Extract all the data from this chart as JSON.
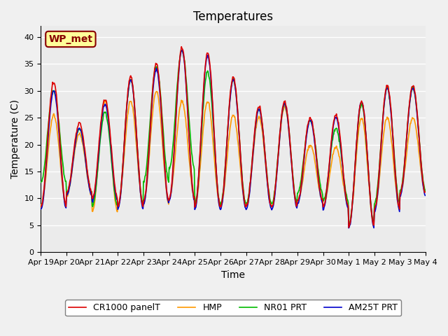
{
  "title": "Temperatures",
  "xlabel": "Time",
  "ylabel": "Temperature (C)",
  "ylim": [
    0,
    42
  ],
  "yticks": [
    0,
    5,
    10,
    15,
    20,
    25,
    30,
    35,
    40
  ],
  "xtick_labels": [
    "Apr 19",
    "Apr 20",
    "Apr 21",
    "Apr 22",
    "Apr 23",
    "Apr 24",
    "Apr 25",
    "Apr 26",
    "Apr 27",
    "Apr 28",
    "Apr 29",
    "Apr 30",
    "May 1",
    "May 2",
    "May 3",
    "May 4"
  ],
  "n_days": 15,
  "colors": {
    "cr1000": "#dd0000",
    "hmp": "#ff9900",
    "nr01": "#00bb00",
    "am25t": "#0000cc"
  },
  "legend_labels": [
    "CR1000 panelT",
    "HMP",
    "NR01 PRT",
    "AM25T PRT"
  ],
  "annotation_text": "WP_met",
  "annotation_color": "#880000",
  "annotation_bg": "#ffff99",
  "plot_bg": "#ebebeb",
  "grid_color": "#ffffff",
  "title_fontsize": 12,
  "axis_fontsize": 10,
  "tick_fontsize": 8,
  "lw": 1.2,
  "day_maxs_cr": [
    31.5,
    24.0,
    28.5,
    32.5,
    35.0,
    38.0,
    37.0,
    32.5,
    27.0,
    28.0,
    25.0,
    25.5,
    28.0,
    31.0,
    31.0
  ],
  "day_mins_cr": [
    8.5,
    11.0,
    10.0,
    8.5,
    9.5,
    10.0,
    8.5,
    8.5,
    8.5,
    8.5,
    9.5,
    8.5,
    4.8,
    8.0,
    11.0
  ],
  "day_maxs_hmp": [
    25.5,
    22.0,
    28.0,
    28.0,
    30.0,
    28.0,
    28.0,
    25.5,
    25.0,
    27.0,
    20.0,
    19.5,
    25.0,
    25.0,
    25.0
  ],
  "day_mins_hmp": [
    8.5,
    10.5,
    7.5,
    8.5,
    9.0,
    10.0,
    8.5,
    8.5,
    8.5,
    8.5,
    9.5,
    8.5,
    4.8,
    8.0,
    11.0
  ],
  "day_maxs_nr01": [
    30.0,
    23.0,
    26.0,
    32.0,
    34.5,
    37.5,
    33.5,
    32.0,
    26.5,
    27.5,
    24.5,
    23.0,
    27.5,
    30.5,
    30.5
  ],
  "day_mins_nr01": [
    13.0,
    11.0,
    8.5,
    8.5,
    13.0,
    15.5,
    9.0,
    9.0,
    9.0,
    9.0,
    11.0,
    9.5,
    5.0,
    9.0,
    11.5
  ],
  "day_maxs_am": [
    30.0,
    23.0,
    27.5,
    32.0,
    34.0,
    37.5,
    36.5,
    32.0,
    26.5,
    27.5,
    24.5,
    25.0,
    28.0,
    30.5,
    30.5
  ],
  "day_mins_am": [
    8.0,
    10.5,
    9.5,
    8.0,
    9.0,
    9.5,
    8.0,
    8.0,
    8.0,
    8.0,
    9.0,
    8.0,
    4.5,
    7.5,
    10.5
  ]
}
